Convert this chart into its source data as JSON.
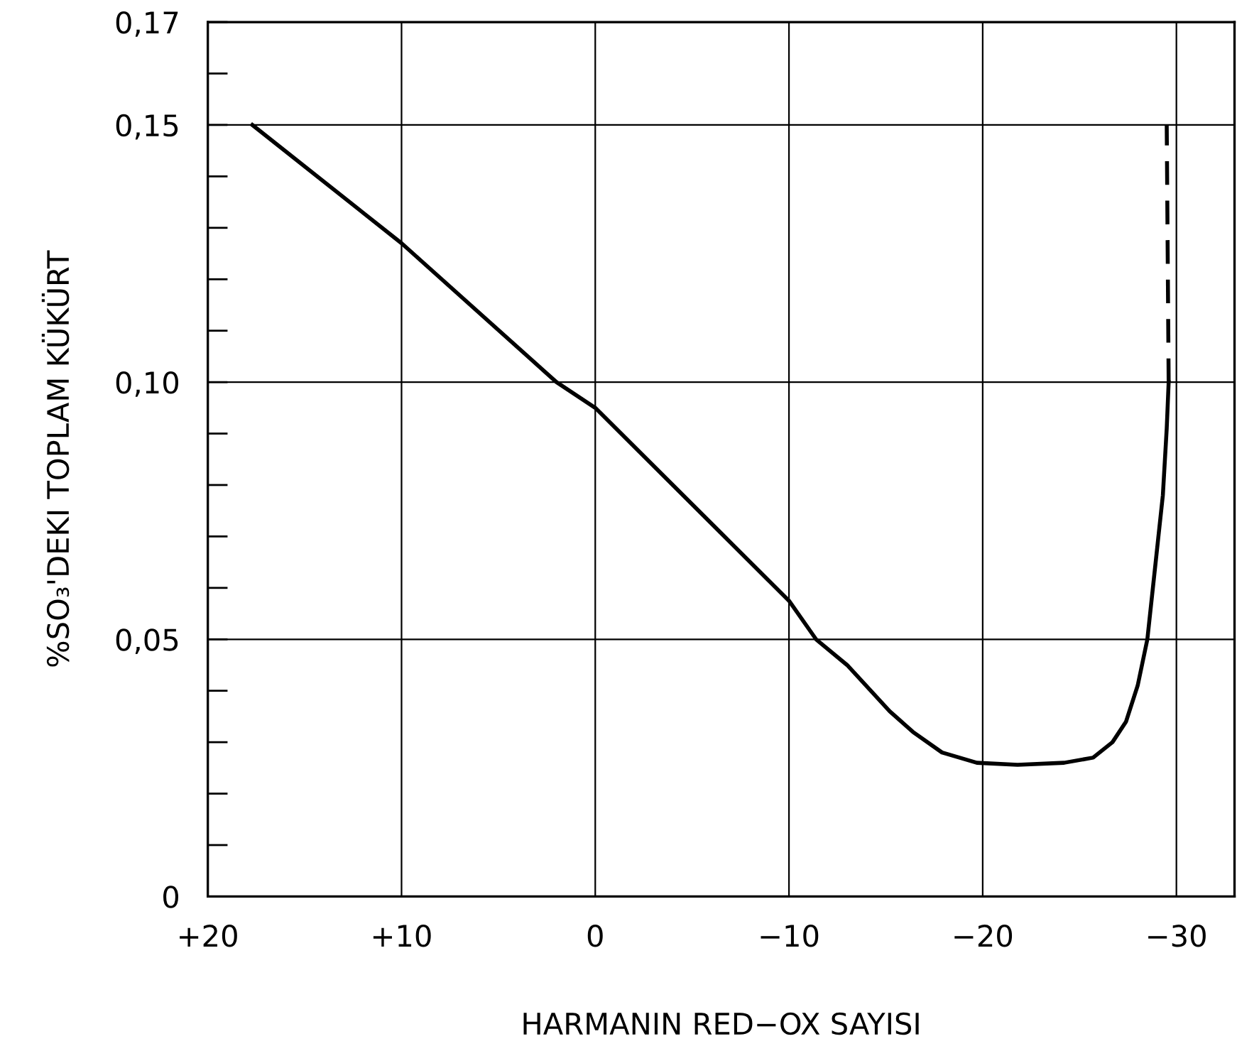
{
  "chart_data": {
    "type": "line",
    "xlabel": "HARMANIN RED−OX SAYISI",
    "ylabel": "%SO₃'DEKI TOPLAM KÜKÜRT",
    "series": [
      {
        "color": "#000000",
        "line_style": "solid",
        "x": [
          17.7,
          10,
          2,
          0,
          -10,
          -11.4,
          -13.0,
          -15.2,
          -16.4,
          -17.9,
          -19.7,
          -21.8,
          -24.2,
          -25.7,
          -26.7,
          -27.4,
          -28.0,
          -28.5,
          -28.9,
          -29.3,
          -29.5,
          -29.6
        ],
        "values": [
          0.15,
          0.127,
          0.1,
          0.095,
          0.0575,
          0.05,
          0.045,
          0.036,
          0.032,
          0.028,
          0.026,
          0.0256,
          0.026,
          0.027,
          0.03,
          0.034,
          0.041,
          0.05,
          0.064,
          0.078,
          0.091,
          0.1
        ]
      },
      {
        "color": "#000000",
        "line_style": "dashed",
        "x": [
          -29.6,
          -29.5
        ],
        "values": [
          0.1,
          0.15
        ]
      }
    ],
    "xlim": [
      20,
      -33
    ],
    "ylim": [
      0,
      0.17
    ],
    "xticks": [
      {
        "value": 20,
        "label": "+20"
      },
      {
        "value": 10,
        "label": "+10"
      },
      0,
      {
        "value": -10,
        "label": "−10"
      },
      {
        "value": -20,
        "label": "−20"
      },
      {
        "value": -30,
        "label": "−30"
      }
    ],
    "yticks": [
      0,
      {
        "value": 0.01,
        "label": null
      },
      {
        "value": 0.02,
        "label": null
      },
      {
        "value": 0.03,
        "label": null
      },
      {
        "value": 0.04,
        "label": null
      },
      {
        "value": 0.05,
        "label": "0,05"
      },
      {
        "value": 0.06,
        "label": null
      },
      {
        "value": 0.07,
        "label": null
      },
      {
        "value": 0.08,
        "label": null
      },
      {
        "value": 0.09,
        "label": null
      },
      {
        "value": 0.1,
        "label": "0,10"
      },
      {
        "value": 0.11,
        "label": null
      },
      {
        "value": 0.12,
        "label": null
      },
      {
        "value": 0.13,
        "label": null
      },
      {
        "value": 0.14,
        "label": null
      },
      {
        "value": 0.15,
        "label": "0,15"
      },
      {
        "value": 0.16,
        "label": null
      },
      {
        "value": 0.17,
        "label": "0,17"
      }
    ],
    "grid": true,
    "marker": "none"
  }
}
